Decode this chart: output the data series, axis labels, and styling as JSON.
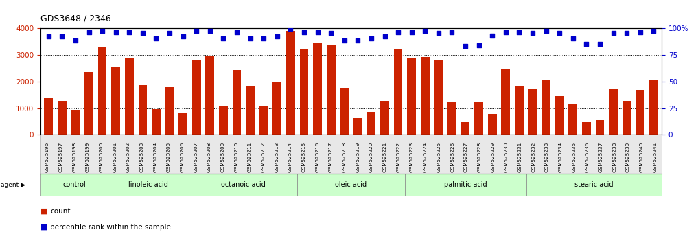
{
  "title": "GDS3648 / 2346",
  "samples": [
    "GSM525196",
    "GSM525197",
    "GSM525198",
    "GSM525199",
    "GSM525200",
    "GSM525201",
    "GSM525202",
    "GSM525203",
    "GSM525204",
    "GSM525205",
    "GSM525206",
    "GSM525207",
    "GSM525208",
    "GSM525209",
    "GSM525210",
    "GSM525211",
    "GSM525212",
    "GSM525213",
    "GSM525214",
    "GSM525215",
    "GSM525216",
    "GSM525217",
    "GSM525218",
    "GSM525219",
    "GSM525220",
    "GSM525221",
    "GSM525222",
    "GSM525223",
    "GSM525224",
    "GSM525225",
    "GSM525226",
    "GSM525227",
    "GSM525228",
    "GSM525229",
    "GSM525230",
    "GSM525231",
    "GSM525232",
    "GSM525233",
    "GSM525234",
    "GSM525235",
    "GSM525236",
    "GSM525237",
    "GSM525238",
    "GSM525239",
    "GSM525240",
    "GSM525241"
  ],
  "counts": [
    1370,
    1260,
    940,
    2360,
    3290,
    2520,
    2870,
    1850,
    950,
    1780,
    830,
    2780,
    2930,
    1060,
    2420,
    1800,
    1060,
    1970,
    3880,
    3230,
    3450,
    3350,
    1760,
    630,
    870,
    1270,
    3200,
    2850,
    2920,
    2790,
    1240,
    510,
    1250,
    780,
    2450,
    1810,
    1730,
    2060,
    1450,
    1130,
    480,
    560,
    1720,
    1280,
    1680,
    2050
  ],
  "percentiles": [
    92,
    92,
    88,
    96,
    97,
    96,
    96,
    95,
    90,
    95,
    92,
    97,
    97,
    90,
    96,
    90,
    90,
    92,
    99,
    96,
    96,
    95,
    88,
    88,
    90,
    92,
    96,
    96,
    97,
    95,
    96,
    83,
    84,
    93,
    96,
    96,
    95,
    97,
    95,
    90,
    85,
    85,
    95,
    95,
    96,
    97
  ],
  "groups": [
    {
      "label": "control",
      "start": 0,
      "end": 5
    },
    {
      "label": "linoleic acid",
      "start": 5,
      "end": 11
    },
    {
      "label": "octanoic acid",
      "start": 11,
      "end": 19
    },
    {
      "label": "oleic acid",
      "start": 19,
      "end": 27
    },
    {
      "label": "palmitic acid",
      "start": 27,
      "end": 36
    },
    {
      "label": "stearic acid",
      "start": 36,
      "end": 46
    }
  ],
  "bar_color": "#cc2200",
  "dot_color": "#0000cc",
  "left_ylim": [
    0,
    4000
  ],
  "left_yticks": [
    0,
    1000,
    2000,
    3000,
    4000
  ],
  "right_ylim": [
    0,
    100
  ],
  "right_yticks": [
    0,
    25,
    50,
    75,
    100
  ]
}
